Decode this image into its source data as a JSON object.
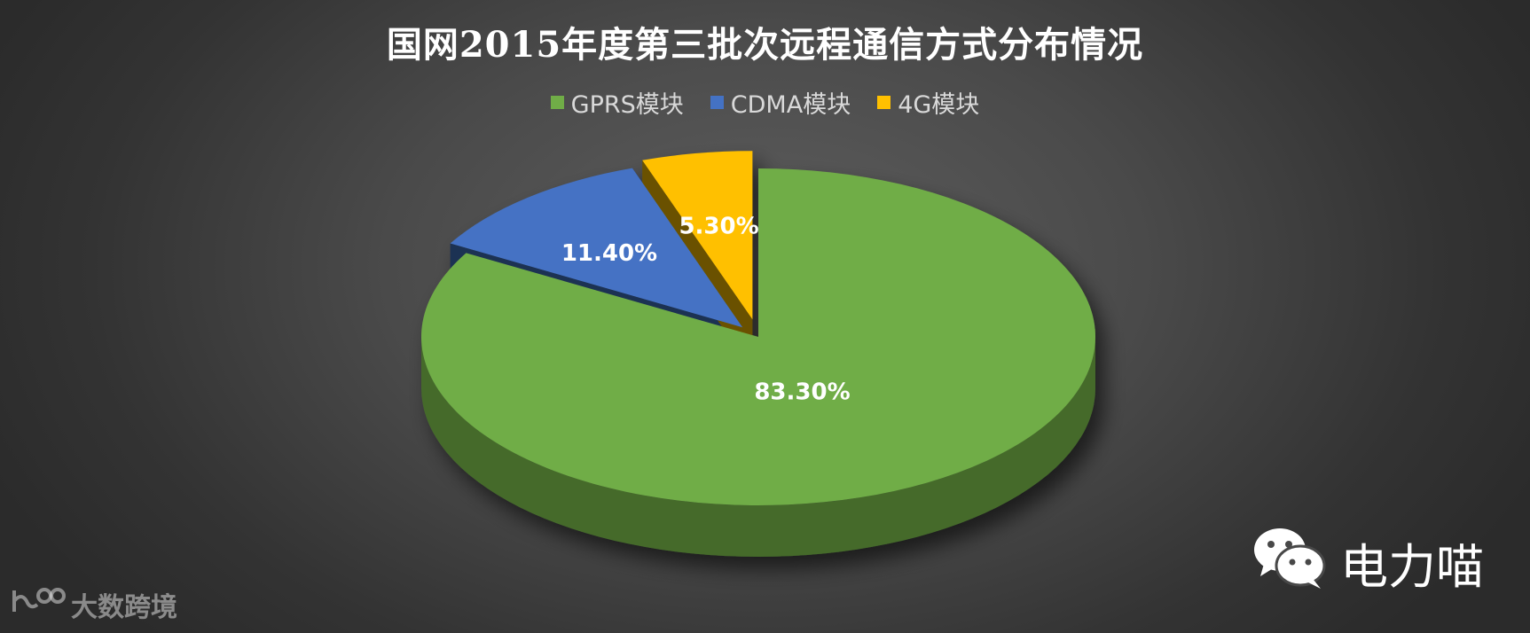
{
  "chart_data": {
    "type": "pie",
    "title": "国网2015年度第三批次远程通信方式分布情况",
    "categories": [
      "GPRS模块",
      "CDMA模块",
      "4G模块"
    ],
    "values": [
      83.3,
      11.4,
      5.3
    ],
    "value_labels": [
      "83.30%",
      "11.40%",
      "5.30%"
    ],
    "colors": [
      "#70ad47",
      "#4472c4",
      "#ffc000"
    ],
    "legend_position": "top",
    "style": "3d-exploded"
  },
  "brand": {
    "name": "电力喵",
    "icon": "wechat-icon"
  },
  "watermark": {
    "text": "大数跨境",
    "icon": "logo-icon"
  }
}
